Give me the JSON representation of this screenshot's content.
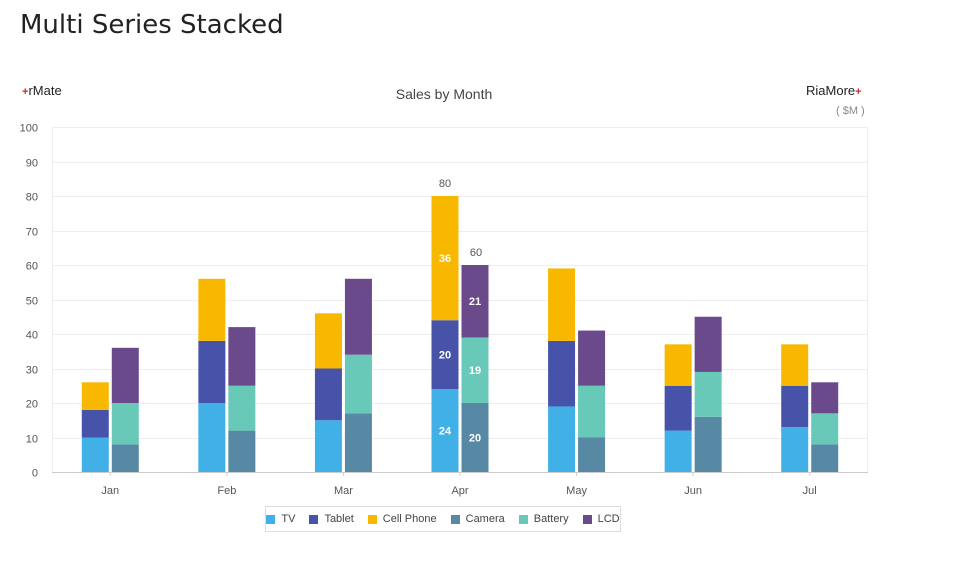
{
  "page": {
    "title": "Multi Series Stacked",
    "brand_left": "rMate",
    "brand_right": "RiaMore",
    "brand_mark": "+"
  },
  "chart_data": {
    "type": "bar",
    "subtype": "multi-series stacked",
    "title": "Sales by Month",
    "unit": "( $M )",
    "xlabel": "",
    "ylabel": "",
    "ylim": [
      0,
      100
    ],
    "yticks": [
      0,
      10,
      20,
      30,
      40,
      50,
      60,
      70,
      80,
      90,
      100
    ],
    "grid": true,
    "legend_position": "bottom",
    "categories": [
      "Jan",
      "Feb",
      "Mar",
      "Apr",
      "May",
      "Jun",
      "Jul"
    ],
    "stacks": [
      {
        "name": "stack-1",
        "series": [
          {
            "name": "TV",
            "color": "#41b0e6",
            "values": [
              10,
              20,
              15,
              24,
              19,
              12,
              13
            ]
          },
          {
            "name": "Tablet",
            "color": "#4753a8",
            "values": [
              8,
              18,
              15,
              20,
              19,
              13,
              12
            ]
          },
          {
            "name": "Cell Phone",
            "color": "#f8b800",
            "values": [
              8,
              18,
              16,
              36,
              21,
              12,
              12
            ]
          }
        ]
      },
      {
        "name": "stack-2",
        "series": [
          {
            "name": "Camera",
            "color": "#5788a4",
            "values": [
              8,
              12,
              17,
              20,
              10,
              16,
              8
            ]
          },
          {
            "name": "Battery",
            "color": "#68c9b9",
            "values": [
              12,
              13,
              17,
              19,
              15,
              13,
              9
            ]
          },
          {
            "name": "LCD",
            "color": "#6b4a8c",
            "values": [
              16,
              17,
              22,
              21,
              16,
              16,
              9
            ]
          }
        ]
      }
    ],
    "legend": [
      "TV",
      "Tablet",
      "Cell Phone",
      "Camera",
      "Battery",
      "LCD"
    ],
    "data_labels": {
      "show_in_category": "Apr",
      "totals": [
        80,
        60
      ]
    }
  }
}
